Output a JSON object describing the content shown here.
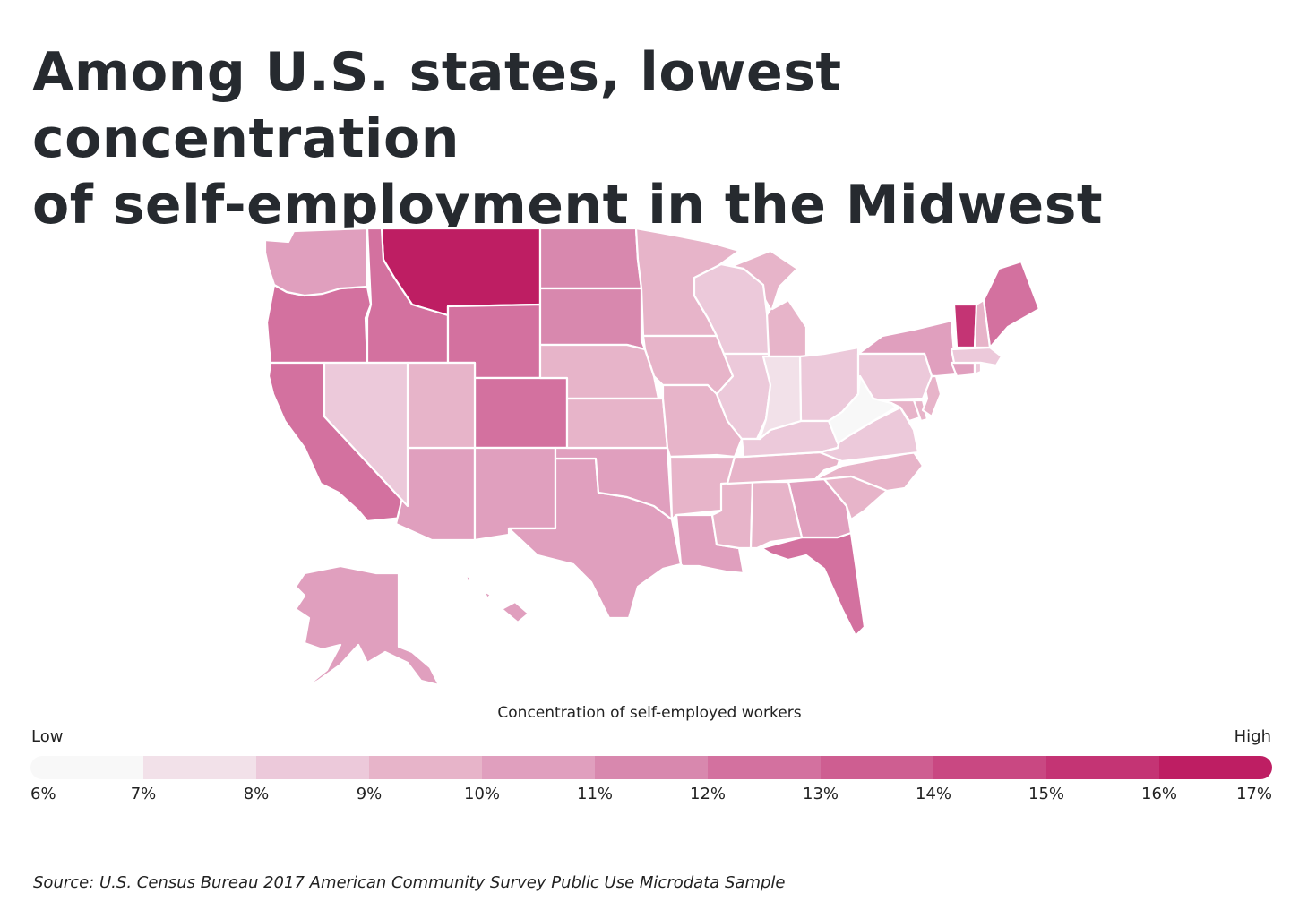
{
  "title": {
    "line1": "Among U.S. states, lowest concentration",
    "line2": "of self-employment in the Midwest"
  },
  "source": "Source:  U.S. Census Bureau 2017 American Community Survey Public Use Microdata Sample",
  "chart_data": {
    "type": "heatmap",
    "subtype": "choropleth",
    "title": "Among U.S. states, lowest concentration of self-employment in the Midwest",
    "legend": {
      "title": "Concentration of self-employed workers",
      "low_label": "Low",
      "high_label": "High",
      "placement": "bottom",
      "ticks": [
        "6%",
        "7%",
        "8%",
        "9%",
        "10%",
        "11%",
        "12%",
        "13%",
        "14%",
        "15%",
        "16%",
        "17%"
      ],
      "bins": [
        {
          "range": [
            6,
            7
          ],
          "color": "#f8f8f8"
        },
        {
          "range": [
            7,
            8
          ],
          "color": "#f2e1e9"
        },
        {
          "range": [
            8,
            9
          ],
          "color": "#ecc9da"
        },
        {
          "range": [
            9,
            10
          ],
          "color": "#e7b4c9"
        },
        {
          "range": [
            10,
            11
          ],
          "color": "#e09fbe"
        },
        {
          "range": [
            11,
            12
          ],
          "color": "#d888ae"
        },
        {
          "range": [
            12,
            13
          ],
          "color": "#d3719f"
        },
        {
          "range": [
            13,
            14
          ],
          "color": "#ce5e91"
        },
        {
          "range": [
            14,
            15
          ],
          "color": "#c94882"
        },
        {
          "range": [
            15,
            16
          ],
          "color": "#c43474"
        },
        {
          "range": [
            16,
            17
          ],
          "color": "#be1e63"
        }
      ]
    },
    "unit": "% of workers self-employed (binned range)",
    "states": [
      {
        "state": "Montana",
        "abbr": "MT",
        "range": [
          16,
          17
        ]
      },
      {
        "state": "Vermont",
        "abbr": "VT",
        "range": [
          15,
          16
        ]
      },
      {
        "state": "Oregon",
        "abbr": "OR",
        "range": [
          12,
          13
        ]
      },
      {
        "state": "Idaho",
        "abbr": "ID",
        "range": [
          12,
          13
        ]
      },
      {
        "state": "Wyoming",
        "abbr": "WY",
        "range": [
          12,
          13
        ]
      },
      {
        "state": "Colorado",
        "abbr": "CO",
        "range": [
          12,
          13
        ]
      },
      {
        "state": "California",
        "abbr": "CA",
        "range": [
          12,
          13
        ]
      },
      {
        "state": "Florida",
        "abbr": "FL",
        "range": [
          12,
          13
        ]
      },
      {
        "state": "Maine",
        "abbr": "ME",
        "range": [
          12,
          13
        ]
      },
      {
        "state": "North Dakota",
        "abbr": "ND",
        "range": [
          11,
          12
        ]
      },
      {
        "state": "South Dakota",
        "abbr": "SD",
        "range": [
          11,
          12
        ]
      },
      {
        "state": "Washington",
        "abbr": "WA",
        "range": [
          10,
          11
        ]
      },
      {
        "state": "Arizona",
        "abbr": "AZ",
        "range": [
          10,
          11
        ]
      },
      {
        "state": "New Mexico",
        "abbr": "NM",
        "range": [
          10,
          11
        ]
      },
      {
        "state": "Texas",
        "abbr": "TX",
        "range": [
          10,
          11
        ]
      },
      {
        "state": "Oklahoma",
        "abbr": "OK",
        "range": [
          10,
          11
        ]
      },
      {
        "state": "Louisiana",
        "abbr": "LA",
        "range": [
          10,
          11
        ]
      },
      {
        "state": "Georgia",
        "abbr": "GA",
        "range": [
          10,
          11
        ]
      },
      {
        "state": "Alaska",
        "abbr": "AK",
        "range": [
          10,
          11
        ]
      },
      {
        "state": "Hawaii",
        "abbr": "HI",
        "range": [
          10,
          11
        ]
      },
      {
        "state": "New York",
        "abbr": "NY",
        "range": [
          10,
          11
        ]
      },
      {
        "state": "Connecticut",
        "abbr": "CT",
        "range": [
          10,
          11
        ]
      },
      {
        "state": "Minnesota",
        "abbr": "MN",
        "range": [
          9,
          10
        ]
      },
      {
        "state": "Nebraska",
        "abbr": "NE",
        "range": [
          9,
          10
        ]
      },
      {
        "state": "Kansas",
        "abbr": "KS",
        "range": [
          9,
          10
        ]
      },
      {
        "state": "Iowa",
        "abbr": "IA",
        "range": [
          9,
          10
        ]
      },
      {
        "state": "Missouri",
        "abbr": "MO",
        "range": [
          9,
          10
        ]
      },
      {
        "state": "Arkansas",
        "abbr": "AR",
        "range": [
          9,
          10
        ]
      },
      {
        "state": "Mississippi",
        "abbr": "MS",
        "range": [
          9,
          10
        ]
      },
      {
        "state": "Alabama",
        "abbr": "AL",
        "range": [
          9,
          10
        ]
      },
      {
        "state": "Tennessee",
        "abbr": "TN",
        "range": [
          9,
          10
        ]
      },
      {
        "state": "North Carolina",
        "abbr": "NC",
        "range": [
          9,
          10
        ]
      },
      {
        "state": "South Carolina",
        "abbr": "SC",
        "range": [
          9,
          10
        ]
      },
      {
        "state": "Michigan",
        "abbr": "MI",
        "range": [
          9,
          10
        ]
      },
      {
        "state": "Utah",
        "abbr": "UT",
        "range": [
          9,
          10
        ]
      },
      {
        "state": "New Hampshire",
        "abbr": "NH",
        "range": [
          9,
          10
        ]
      },
      {
        "state": "Maryland",
        "abbr": "MD",
        "range": [
          9,
          10
        ]
      },
      {
        "state": "Delaware",
        "abbr": "DE",
        "range": [
          9,
          10
        ]
      },
      {
        "state": "New Jersey",
        "abbr": "NJ",
        "range": [
          9,
          10
        ]
      },
      {
        "state": "Nevada",
        "abbr": "NV",
        "range": [
          8,
          9
        ]
      },
      {
        "state": "Wisconsin",
        "abbr": "WI",
        "range": [
          8,
          9
        ]
      },
      {
        "state": "Illinois",
        "abbr": "IL",
        "range": [
          8,
          9
        ]
      },
      {
        "state": "Ohio",
        "abbr": "OH",
        "range": [
          8,
          9
        ]
      },
      {
        "state": "Pennsylvania",
        "abbr": "PA",
        "range": [
          8,
          9
        ]
      },
      {
        "state": "Kentucky",
        "abbr": "KY",
        "range": [
          8,
          9
        ]
      },
      {
        "state": "Virginia",
        "abbr": "VA",
        "range": [
          8,
          9
        ]
      },
      {
        "state": "Massachusetts",
        "abbr": "MA",
        "range": [
          8,
          9
        ]
      },
      {
        "state": "Rhode Island",
        "abbr": "RI",
        "range": [
          8,
          9
        ]
      },
      {
        "state": "Indiana",
        "abbr": "IN",
        "range": [
          7,
          8
        ]
      },
      {
        "state": "West Virginia",
        "abbr": "WV",
        "range": [
          6,
          7
        ]
      }
    ]
  }
}
